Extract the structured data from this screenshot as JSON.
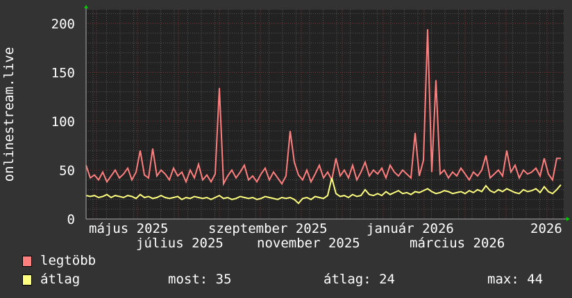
{
  "chart_data": {
    "type": "line",
    "ylabel": "onlinestream.live",
    "ylim": [
      0,
      214
    ],
    "yticks": [
      "0",
      "50",
      "100",
      "150",
      "200"
    ],
    "xtick_labels": [
      "május 2025",
      "július 2025",
      "szeptember 2025",
      "november 2025",
      "január 2026",
      "március 2026",
      "2026"
    ],
    "grid": true,
    "series": [
      {
        "name": "legtöbb",
        "color": "#ff7f7f",
        "values": [
          55,
          42,
          45,
          40,
          48,
          38,
          44,
          50,
          42,
          46,
          52,
          40,
          48,
          70,
          45,
          42,
          72,
          44,
          50,
          46,
          40,
          52,
          44,
          48,
          38,
          50,
          42,
          56,
          40,
          45,
          38,
          46,
          134,
          36,
          44,
          50,
          42,
          48,
          55,
          40,
          44,
          38,
          46,
          52,
          40,
          48,
          42,
          36,
          44,
          90,
          58,
          45,
          40,
          50,
          38,
          46,
          55,
          42,
          48,
          40,
          62,
          44,
          50,
          42,
          55,
          40,
          48,
          58,
          44,
          50,
          46,
          52,
          42,
          55,
          48,
          44,
          50,
          46,
          42,
          88,
          44,
          60,
          194,
          48,
          142,
          46,
          50,
          42,
          48,
          44,
          52,
          46,
          40,
          48,
          44,
          50,
          65,
          42,
          46,
          50,
          44,
          70,
          48,
          55,
          42,
          50,
          46,
          48,
          52,
          44,
          62,
          46,
          40,
          62,
          62
        ]
      },
      {
        "name": "átlag",
        "color": "#ffff7f",
        "values": [
          24,
          23,
          24,
          22,
          23,
          25,
          22,
          24,
          23,
          22,
          24,
          23,
          21,
          25,
          22,
          23,
          21,
          22,
          24,
          22,
          21,
          22,
          23,
          20,
          22,
          21,
          23,
          22,
          21,
          22,
          20,
          22,
          24,
          21,
          22,
          20,
          21,
          23,
          22,
          21,
          22,
          20,
          21,
          23,
          22,
          21,
          20,
          22,
          21,
          22,
          20,
          16,
          21,
          22,
          20,
          23,
          22,
          21,
          24,
          42,
          26,
          23,
          24,
          22,
          25,
          23,
          24,
          30,
          25,
          24,
          26,
          24,
          28,
          25,
          27,
          29,
          26,
          27,
          25,
          28,
          27,
          29,
          31,
          28,
          26,
          27,
          29,
          28,
          26,
          27,
          28,
          26,
          29,
          27,
          30,
          28,
          34,
          29,
          27,
          30,
          28,
          31,
          29,
          27,
          26,
          30,
          28,
          29,
          31,
          27,
          33,
          28,
          26,
          30,
          35
        ]
      }
    ]
  },
  "legend": {
    "max_label": "legtöbb",
    "avg_label": "átlag",
    "current": "most: 35",
    "average": "átlag: 24",
    "maximum": "max: 44"
  }
}
